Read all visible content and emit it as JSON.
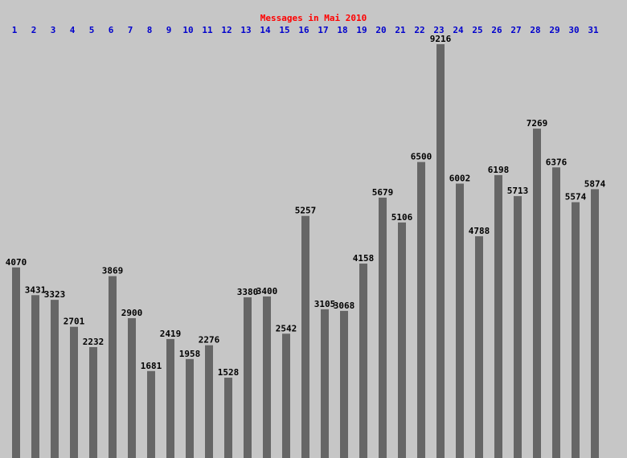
{
  "chart_data": {
    "type": "bar",
    "title": "Messages in Mai 2010",
    "categories": [
      "1",
      "2",
      "3",
      "4",
      "5",
      "6",
      "7",
      "8",
      "9",
      "10",
      "11",
      "12",
      "13",
      "14",
      "15",
      "16",
      "17",
      "18",
      "19",
      "20",
      "21",
      "22",
      "23",
      "24",
      "25",
      "26",
      "27",
      "28",
      "29",
      "30",
      "31"
    ],
    "values": [
      4070,
      3431,
      3323,
      2701,
      2232,
      3869,
      2900,
      1681,
      2419,
      1958,
      2276,
      1528,
      3380,
      3400,
      2542,
      5257,
      3105,
      3068,
      4158,
      5679,
      5106,
      6500,
      9216,
      6002,
      4788,
      6198,
      5713,
      7269,
      6376,
      5574,
      5874
    ],
    "color": "#666666",
    "title_color": "#ff0000",
    "category_color": "#0000cc",
    "background": "#c6c6c6",
    "ylim": [
      -324,
      10235
    ]
  }
}
